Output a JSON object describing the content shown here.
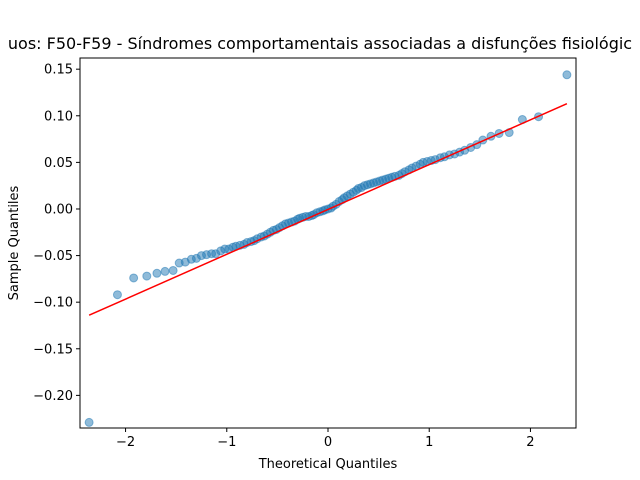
{
  "chart_data": {
    "type": "scatter",
    "title": "uos: F50-F59 - Síndromes comportamentais associadas a disfunções fisiológic",
    "xlabel": "Theoretical Quantiles",
    "ylabel": "Sample Quantiles",
    "xlim": [
      -2.45,
      2.45
    ],
    "ylim": [
      -0.235,
      0.162
    ],
    "xticks": [
      -2,
      -1,
      0,
      1,
      2
    ],
    "xtick_labels": [
      "−2",
      "−1",
      "0",
      "1",
      "2"
    ],
    "yticks": [
      -0.2,
      -0.15,
      -0.1,
      -0.05,
      0.0,
      0.05,
      0.1,
      0.15
    ],
    "ytick_labels": [
      "−0.20",
      "−0.15",
      "−0.10",
      "−0.05",
      "0.00",
      "0.05",
      "0.10",
      "0.15"
    ],
    "grid": false,
    "legend": "none",
    "series": [
      {
        "kind": "points",
        "color": "#1f77b4",
        "x": [
          -2.36,
          -2.08,
          -1.92,
          -1.79,
          -1.69,
          -1.61,
          -1.53,
          -1.47,
          -1.41,
          -1.35,
          -1.3,
          -1.25,
          -1.2,
          -1.15,
          -1.11,
          -1.06,
          -1.02,
          -0.98,
          -0.94,
          -0.91,
          -0.87,
          -0.83,
          -0.8,
          -0.76,
          -0.73,
          -0.7,
          -0.66,
          -0.63,
          -0.6,
          -0.57,
          -0.54,
          -0.51,
          -0.48,
          -0.45,
          -0.42,
          -0.39,
          -0.36,
          -0.33,
          -0.3,
          -0.28,
          -0.25,
          -0.22,
          -0.19,
          -0.16,
          -0.14,
          -0.11,
          -0.08,
          -0.05,
          -0.03,
          0.0,
          0.03,
          0.05,
          0.08,
          0.11,
          0.14,
          0.16,
          0.19,
          0.22,
          0.25,
          0.28,
          0.3,
          0.33,
          0.36,
          0.39,
          0.42,
          0.45,
          0.48,
          0.51,
          0.54,
          0.57,
          0.6,
          0.63,
          0.66,
          0.7,
          0.73,
          0.76,
          0.8,
          0.83,
          0.87,
          0.91,
          0.94,
          0.98,
          1.02,
          1.06,
          1.11,
          1.15,
          1.2,
          1.25,
          1.3,
          1.35,
          1.41,
          1.47,
          1.53,
          1.61,
          1.69,
          1.79,
          1.92,
          2.08,
          2.36
        ],
        "y": [
          -0.229,
          -0.092,
          -0.074,
          -0.072,
          -0.069,
          -0.067,
          -0.066,
          -0.058,
          -0.057,
          -0.054,
          -0.053,
          -0.05,
          -0.049,
          -0.048,
          -0.048,
          -0.045,
          -0.043,
          -0.043,
          -0.041,
          -0.04,
          -0.039,
          -0.038,
          -0.036,
          -0.035,
          -0.034,
          -0.032,
          -0.03,
          -0.029,
          -0.027,
          -0.025,
          -0.023,
          -0.022,
          -0.02,
          -0.018,
          -0.016,
          -0.015,
          -0.014,
          -0.013,
          -0.011,
          -0.01,
          -0.009,
          -0.008,
          -0.008,
          -0.007,
          -0.006,
          -0.004,
          -0.003,
          -0.002,
          -0.001,
          0.0,
          0.001,
          0.003,
          0.005,
          0.008,
          0.01,
          0.012,
          0.014,
          0.016,
          0.018,
          0.02,
          0.022,
          0.023,
          0.025,
          0.026,
          0.027,
          0.028,
          0.029,
          0.03,
          0.031,
          0.032,
          0.033,
          0.034,
          0.035,
          0.036,
          0.038,
          0.04,
          0.042,
          0.044,
          0.046,
          0.048,
          0.05,
          0.051,
          0.052,
          0.053,
          0.055,
          0.056,
          0.058,
          0.059,
          0.061,
          0.063,
          0.066,
          0.069,
          0.074,
          0.078,
          0.081,
          0.082,
          0.096,
          0.099,
          0.144
        ]
      },
      {
        "kind": "reference_line",
        "color": "#ff0000",
        "x": [
          -2.36,
          2.36
        ],
        "y": [
          -0.114,
          0.113
        ]
      }
    ]
  }
}
